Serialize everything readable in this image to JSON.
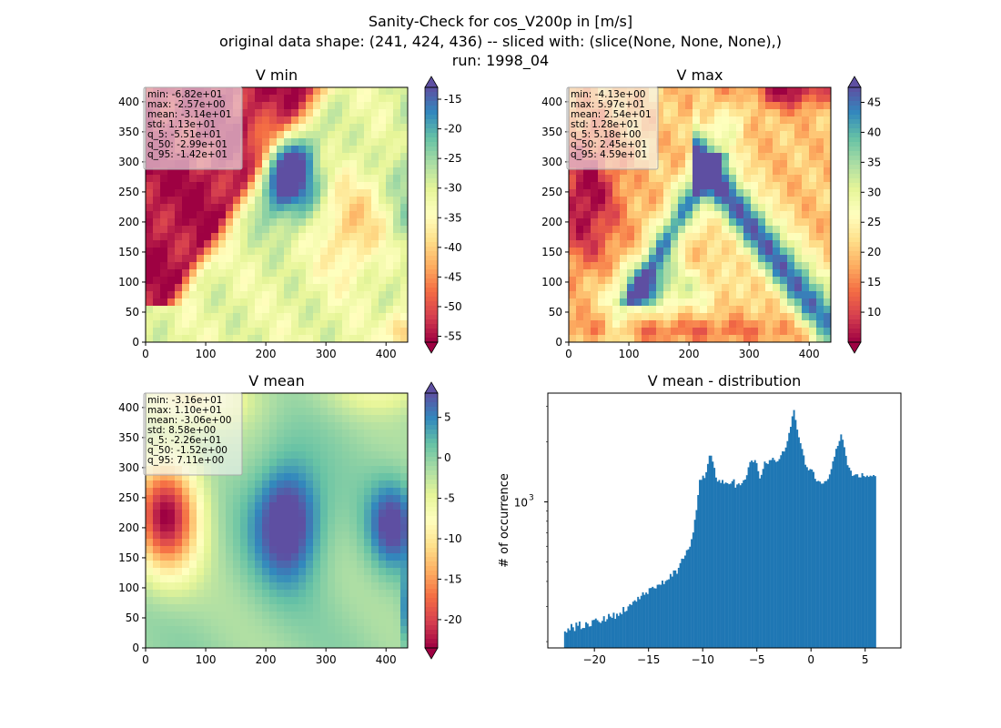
{
  "figure": {
    "title_lines": [
      "Sanity-Check for cos_V200p in [m/s]",
      "original data shape: (241, 424, 436) -- sliced with: (slice(None, None, None),)",
      "run: 1998_04"
    ]
  },
  "colormap": {
    "name": "Spectral",
    "stops": [
      "#9e0142",
      "#d53e4f",
      "#f46d43",
      "#fdae61",
      "#fee08b",
      "#ffffbf",
      "#e6f598",
      "#abdda4",
      "#66c2a5",
      "#3288bd",
      "#5e4fa2"
    ],
    "over_color": "#5e4fa2",
    "under_color": "#9e0142"
  },
  "chart_data": [
    {
      "type": "heatmap",
      "title": "V min",
      "x_ticks": [
        "0",
        "100",
        "200",
        "300",
        "400"
      ],
      "y_ticks": [
        "0",
        "50",
        "100",
        "150",
        "200",
        "250",
        "300",
        "350",
        "400"
      ],
      "xlim": [
        0,
        436
      ],
      "ylim": [
        0,
        424
      ],
      "colorbar": {
        "ticks": [
          "-55",
          "-50",
          "-45",
          "-40",
          "-35",
          "-30",
          "-25",
          "-20",
          "-15"
        ],
        "vmin": -56,
        "vmax": -13,
        "extend": "both"
      },
      "stats": [
        "min: -6.82e+01",
        "max: -2.57e+00",
        "mean: -3.14e+01",
        "std: 1.13e+01",
        "q_5: -5.51e+01",
        "q_50: -2.99e+01",
        "q_95: -1.42e+01"
      ]
    },
    {
      "type": "heatmap",
      "title": "V max",
      "x_ticks": [
        "0",
        "100",
        "200",
        "300",
        "400"
      ],
      "y_ticks": [
        "0",
        "50",
        "100",
        "150",
        "200",
        "250",
        "300",
        "350",
        "400"
      ],
      "xlim": [
        0,
        436
      ],
      "ylim": [
        0,
        424
      ],
      "colorbar": {
        "ticks": [
          "10",
          "15",
          "20",
          "25",
          "30",
          "35",
          "40",
          "45"
        ],
        "vmin": 5,
        "vmax": 47.5,
        "extend": "both"
      },
      "stats": [
        "min: -4.13e+00",
        "max: 5.97e+01",
        "mean: 2.54e+01",
        "std: 1.28e+01",
        "q_5: 5.18e+00",
        "q_50: 2.45e+01",
        "q_95: 4.59e+01"
      ]
    },
    {
      "type": "heatmap",
      "title": "V mean",
      "x_ticks": [
        "0",
        "100",
        "200",
        "300",
        "400"
      ],
      "y_ticks": [
        "0",
        "50",
        "100",
        "150",
        "200",
        "250",
        "300",
        "350",
        "400"
      ],
      "xlim": [
        0,
        436
      ],
      "ylim": [
        0,
        424
      ],
      "colorbar": {
        "ticks": [
          "-20",
          "-15",
          "-10",
          "-5",
          "0",
          "5"
        ],
        "vmin": -23.5,
        "vmax": 8,
        "extend": "both"
      },
      "stats": [
        "min: -3.16e+01",
        "max: 1.10e+01",
        "mean: -3.06e+00",
        "std: 8.58e+00",
        "q_5: -2.26e+01",
        "q_50: -1.52e+00",
        "q_95: 7.11e+00"
      ]
    },
    {
      "type": "bar",
      "title": "V mean - distribution",
      "ylabel": "# of occurrence",
      "yscale": "log",
      "x_ticks": [
        "−20",
        "−15",
        "−10",
        "−5",
        "0",
        "5"
      ],
      "x_tick_values": [
        -20,
        -15,
        -10,
        -5,
        0,
        5
      ],
      "xlim": [
        -24.3,
        8.3
      ],
      "ylim": [
        186,
        3500
      ],
      "y_tick_label": "10",
      "y_tick_exp": "3",
      "y_tick_value": 1000,
      "bar_color": "#1f77b4",
      "bins": {
        "start": -22.8,
        "width": 0.15
      },
      "values": [
        225,
        222,
        233,
        228,
        245,
        236,
        226,
        249,
        240,
        252,
        231,
        234,
        234,
        250,
        246,
        238,
        239,
        256,
        257,
        261,
        256,
        251,
        248,
        254,
        268,
        252,
        259,
        275,
        267,
        263,
        279,
        260,
        276,
        269,
        279,
        274,
        298,
        282,
        285,
        300,
        308,
        305,
        317,
        322,
        317,
        335,
        326,
        339,
        353,
        343,
        352,
        346,
        370,
        371,
        376,
        370,
        369,
        385,
        386,
        385,
        404,
        388,
        402,
        407,
        410,
        436,
        423,
        454,
        454,
        437,
        468,
        494,
        520,
        519,
        539,
        573,
        579,
        597,
        651,
        703,
        814,
        910,
        1082,
        1289,
        1289,
        1353,
        1316,
        1408,
        1548,
        1703,
        1703,
        1590,
        1480,
        1324,
        1264,
        1287,
        1244,
        1287,
        1233,
        1250,
        1240,
        1226,
        1234,
        1269,
        1297,
        1178,
        1222,
        1237,
        1212,
        1240,
        1284,
        1294,
        1360,
        1490,
        1583,
        1610,
        1579,
        1618,
        1564,
        1424,
        1310,
        1365,
        1462,
        1591,
        1560,
        1547,
        1617,
        1620,
        1662,
        1620,
        1585,
        1598,
        1638,
        1712,
        1791,
        1787,
        1871,
        2014,
        2213,
        2374,
        2680,
        2880,
        2570,
        2299,
        2104,
        1966,
        1840,
        1708,
        1534,
        1492,
        1438,
        1460,
        1452,
        1412,
        1305,
        1266,
        1274,
        1263,
        1233,
        1236,
        1269,
        1273,
        1301,
        1372,
        1459,
        1595,
        1683,
        1843,
        1906,
        2016,
        2175,
        2046,
        1877,
        1700,
        1526,
        1484,
        1433,
        1348,
        1359,
        1374,
        1374,
        1327,
        1325,
        1392,
        1347,
        1332,
        1354,
        1334,
        1353,
        1343,
        1362,
        1346
      ]
    }
  ]
}
